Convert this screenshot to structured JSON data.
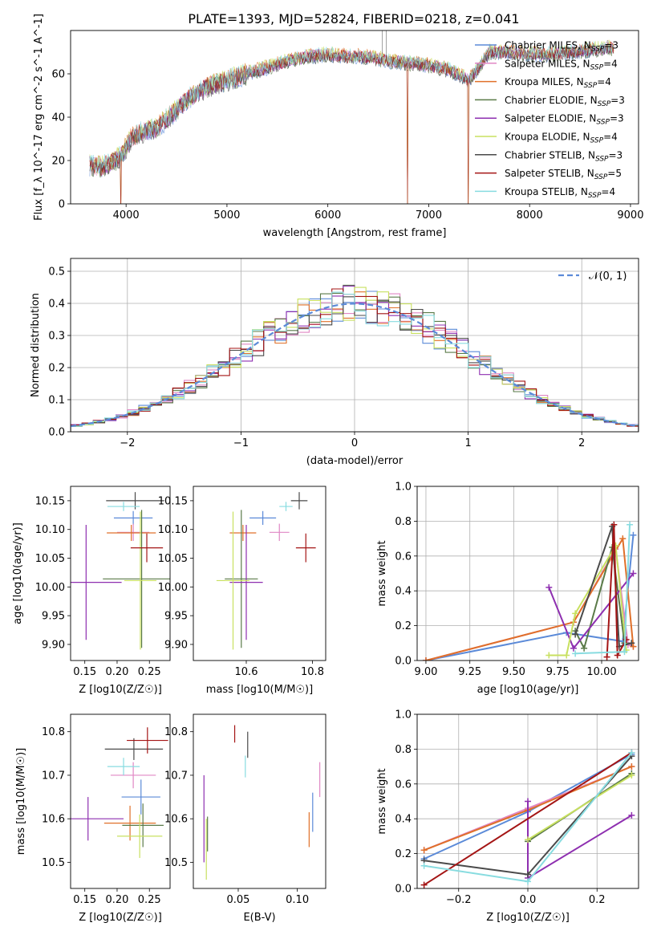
{
  "title": "PLATE=1393, MJD=52824, FIBERID=0218, z=0.041",
  "colors": {
    "Chabrier MILES": "#5b8ad8",
    "Salpeter MILES": "#e087c4",
    "Kroupa MILES": "#e0702a",
    "Chabrier ELODIE": "#5a7a48",
    "Salpeter ELODIE": "#8e2fb0",
    "Kroupa ELODIE": "#c8e060",
    "Chabrier STELIB": "#4a4a4a",
    "Salpeter STELIB": "#a41515",
    "Kroupa STELIB": "#88dce0"
  },
  "chart_data": [
    {
      "id": "spectrum",
      "type": "line",
      "title": "PLATE=1393, MJD=52824, FIBERID=0218, z=0.041",
      "xlabel": "wavelength [Angstrom, rest frame]",
      "ylabel": "Flux [f_λ 10^-17 erg cm^-2 s^-1 A^-1]",
      "xlim": [
        3450,
        9080
      ],
      "ylim": [
        0,
        80
      ],
      "xticks": [
        4000,
        5000,
        6000,
        7000,
        8000,
        9000
      ],
      "yticks": [
        0,
        20,
        40,
        60
      ],
      "legend_position": "top-right",
      "legend": [
        {
          "label": "Chabrier MILES, N",
          "sub": "SSP",
          "suffix": "=3"
        },
        {
          "label": "Salpeter MILES, N",
          "sub": "SSP",
          "suffix": "=4"
        },
        {
          "label": "Kroupa MILES, N",
          "sub": "SSP",
          "suffix": "=4"
        },
        {
          "label": "Chabrier ELODIE, N",
          "sub": "SSP",
          "suffix": "=3"
        },
        {
          "label": "Salpeter ELODIE, N",
          "sub": "SSP",
          "suffix": "=3"
        },
        {
          "label": "Kroupa ELODIE, N",
          "sub": "SSP",
          "suffix": "=4"
        },
        {
          "label": "Chabrier STELIB, N",
          "sub": "SSP",
          "suffix": "=3"
        },
        {
          "label": "Salpeter STELIB, N",
          "sub": "SSP",
          "suffix": "=5"
        },
        {
          "label": "Kroupa STELIB, N",
          "sub": "SSP",
          "suffix": "=4"
        }
      ],
      "continuum": {
        "x": [
          3650,
          3750,
          3850,
          3950,
          4050,
          4150,
          4300,
          4450,
          4600,
          4800,
          5000,
          5200,
          5400,
          5600,
          5800,
          6000,
          6200,
          6400,
          6600,
          6800,
          7000,
          7200,
          7400,
          7600,
          7800,
          8000,
          8200,
          8400,
          8600,
          8800
        ],
        "y": [
          18,
          17,
          19,
          22,
          30,
          33,
          35,
          41,
          48,
          54,
          57,
          60,
          63,
          66,
          68,
          69,
          68,
          68,
          66,
          65,
          64,
          62,
          57,
          70,
          70,
          69,
          69,
          70,
          71,
          72
        ]
      },
      "dropouts": [
        3950,
        6790,
        7390
      ]
    },
    {
      "id": "residuals",
      "type": "histogram",
      "xlabel": "(data-model)/error",
      "ylabel": "Normed distribution",
      "xlim": [
        -2.5,
        2.5
      ],
      "ylim": [
        0,
        0.54
      ],
      "xticks": [
        -2,
        -1,
        0,
        1,
        2
      ],
      "yticks": [
        0.0,
        0.1,
        0.2,
        0.3,
        0.4,
        0.5
      ],
      "bins": 50,
      "reference_curve": "𝒩(0, 1)",
      "legend_position": "top-right"
    },
    {
      "id": "age_vs_Z",
      "type": "scatter",
      "xlabel": "Z [log10(Z/Z☉)]",
      "ylabel": "age  [log10(age/yr)]",
      "xlim": [
        0.128,
        0.282
      ],
      "ylim": [
        9.872,
        10.175
      ],
      "xticks": [
        0.15,
        0.2,
        0.25
      ],
      "yticks": [
        9.9,
        9.95,
        10.0,
        10.05,
        10.1,
        10.15
      ],
      "points": [
        {
          "model": "Chabrier MILES",
          "x": 0.225,
          "y": 10.12,
          "xerr": 0.03,
          "yerr": 0.012
        },
        {
          "model": "Salpeter MILES",
          "x": 0.225,
          "y": 10.095,
          "xerr": 0.025,
          "yerr": 0.015
        },
        {
          "model": "Kroupa MILES",
          "x": 0.222,
          "y": 10.094,
          "xerr": 0.038,
          "yerr": 0.014
        },
        {
          "model": "Chabrier ELODIE",
          "x": 0.238,
          "y": 10.014,
          "xerr": 0.06,
          "yerr": 0.12
        },
        {
          "model": "Salpeter ELODIE",
          "x": 0.152,
          "y": 10.008,
          "xerr": 0.055,
          "yerr": 0.1
        },
        {
          "model": "Kroupa ELODIE",
          "x": 0.236,
          "y": 10.011,
          "xerr": 0.025,
          "yerr": 0.12
        },
        {
          "model": "Chabrier STELIB",
          "x": 0.228,
          "y": 10.15,
          "xerr": 0.045,
          "yerr": 0.015
        },
        {
          "model": "Salpeter STELIB",
          "x": 0.246,
          "y": 10.068,
          "xerr": 0.025,
          "yerr": 0.025
        },
        {
          "model": "Kroupa STELIB",
          "x": 0.21,
          "y": 10.14,
          "xerr": 0.025,
          "yerr": 0.008
        }
      ]
    },
    {
      "id": "age_vs_mass",
      "type": "scatter",
      "xlabel": "mass [log10(M/M☉)]",
      "ylabel": "",
      "xlim": [
        10.44,
        10.84
      ],
      "ylim": [
        9.872,
        10.175
      ],
      "xticks": [
        10.6,
        10.8
      ],
      "yticks": [
        9.9,
        9.95,
        10.0,
        10.05,
        10.1,
        10.15
      ],
      "points": [
        {
          "model": "Chabrier MILES",
          "x": 10.65,
          "y": 10.12,
          "xerr": 0.04,
          "yerr": 0.012
        },
        {
          "model": "Salpeter MILES",
          "x": 10.7,
          "y": 10.095,
          "xerr": 0.03,
          "yerr": 0.015
        },
        {
          "model": "Kroupa MILES",
          "x": 10.59,
          "y": 10.094,
          "xerr": 0.04,
          "yerr": 0.014
        },
        {
          "model": "Chabrier ELODIE",
          "x": 10.585,
          "y": 10.014,
          "xerr": 0.05,
          "yerr": 0.12
        },
        {
          "model": "Salpeter ELODIE",
          "x": 10.6,
          "y": 10.008,
          "xerr": 0.05,
          "yerr": 0.1
        },
        {
          "model": "Kroupa ELODIE",
          "x": 10.56,
          "y": 10.011,
          "xerr": 0.05,
          "yerr": 0.12
        },
        {
          "model": "Chabrier STELIB",
          "x": 10.76,
          "y": 10.15,
          "xerr": 0.025,
          "yerr": 0.015
        },
        {
          "model": "Salpeter STELIB",
          "x": 10.78,
          "y": 10.068,
          "xerr": 0.03,
          "yerr": 0.025
        },
        {
          "model": "Kroupa STELIB",
          "x": 10.72,
          "y": 10.14,
          "xerr": 0.02,
          "yerr": 0.008
        }
      ]
    },
    {
      "id": "weight_vs_age",
      "type": "line",
      "xlabel": "age  [log10(age/yr)]",
      "ylabel": "mass weight",
      "xlim": [
        8.95,
        10.21
      ],
      "ylim": [
        0,
        1.0
      ],
      "xticks": [
        9.0,
        9.25,
        9.5,
        9.75,
        10.0
      ],
      "yticks": [
        0.0,
        0.2,
        0.4,
        0.6,
        0.8,
        1.0
      ],
      "series": [
        {
          "model": "Chabrier MILES",
          "x": [
            9.0,
            9.8,
            10.12,
            10.18
          ],
          "y": [
            0.0,
            0.16,
            0.11,
            0.72
          ]
        },
        {
          "model": "Salpeter MILES",
          "x": [
            9.0,
            9.84,
            10.08,
            10.15,
            10.18
          ],
          "y": [
            0.0,
            0.22,
            0.64,
            0.09,
            0.08
          ]
        },
        {
          "model": "Kroupa MILES",
          "x": [
            9.0,
            9.84,
            10.12,
            10.18
          ],
          "y": [
            0.0,
            0.22,
            0.7,
            0.08
          ]
        },
        {
          "model": "Chabrier ELODIE",
          "x": [
            9.85,
            9.9,
            10.06,
            10.13
          ],
          "y": [
            0.17,
            0.07,
            0.65,
            0.1
          ]
        },
        {
          "model": "Salpeter ELODIE",
          "x": [
            9.7,
            9.84,
            10.18
          ],
          "y": [
            0.42,
            0.07,
            0.5
          ]
        },
        {
          "model": "Kroupa ELODIE",
          "x": [
            9.7,
            9.8,
            9.85,
            10.08,
            10.14
          ],
          "y": [
            0.03,
            0.03,
            0.27,
            0.66,
            0.06
          ]
        },
        {
          "model": "Chabrier STELIB",
          "x": [
            9.85,
            10.06,
            10.1,
            10.17
          ],
          "y": [
            0.15,
            0.77,
            0.08,
            0.1
          ]
        },
        {
          "model": "Salpeter STELIB",
          "x": [
            10.03,
            10.07,
            10.09,
            10.14
          ],
          "y": [
            0.02,
            0.78,
            0.03,
            0.12
          ]
        },
        {
          "model": "Kroupa STELIB",
          "x": [
            9.85,
            10.13,
            10.16
          ],
          "y": [
            0.04,
            0.05,
            0.78
          ]
        }
      ]
    },
    {
      "id": "mass_vs_Z",
      "type": "scatter",
      "xlabel": "Z [log10(Z/Z☉)]",
      "ylabel": "mass [log10(M/M☉)]",
      "xlim": [
        0.128,
        0.282
      ],
      "ylim": [
        10.44,
        10.84
      ],
      "xticks": [
        0.15,
        0.2,
        0.25
      ],
      "yticks": [
        10.5,
        10.6,
        10.7,
        10.8
      ],
      "points": [
        {
          "model": "Chabrier MILES",
          "x": 0.237,
          "y": 10.65,
          "xerr": 0.03,
          "yerr": 0.04
        },
        {
          "model": "Salpeter MILES",
          "x": 0.225,
          "y": 10.7,
          "xerr": 0.035,
          "yerr": 0.03
        },
        {
          "model": "Kroupa MILES",
          "x": 0.22,
          "y": 10.59,
          "xerr": 0.04,
          "yerr": 0.04
        },
        {
          "model": "Chabrier ELODIE",
          "x": 0.24,
          "y": 10.585,
          "xerr": 0.032,
          "yerr": 0.05
        },
        {
          "model": "Salpeter ELODIE",
          "x": 0.155,
          "y": 10.6,
          "xerr": 0.055,
          "yerr": 0.05
        },
        {
          "model": "Kroupa ELODIE",
          "x": 0.235,
          "y": 10.56,
          "xerr": 0.035,
          "yerr": 0.05
        },
        {
          "model": "Chabrier STELIB",
          "x": 0.226,
          "y": 10.76,
          "xerr": 0.045,
          "yerr": 0.025
        },
        {
          "model": "Salpeter STELIB",
          "x": 0.247,
          "y": 10.78,
          "xerr": 0.032,
          "yerr": 0.03
        },
        {
          "model": "Kroupa STELIB",
          "x": 0.21,
          "y": 10.72,
          "xerr": 0.025,
          "yerr": 0.02
        }
      ]
    },
    {
      "id": "mass_vs_EBV",
      "type": "scatter",
      "xlabel": "E(B-V)",
      "ylabel": "",
      "xlim": [
        0.012,
        0.124
      ],
      "ylim": [
        10.44,
        10.84
      ],
      "xticks": [
        0.05,
        0.1
      ],
      "yticks": [
        10.5,
        10.6,
        10.7,
        10.8
      ],
      "points": [
        {
          "model": "Chabrier MILES",
          "x": 0.113,
          "y": 10.615,
          "yerr": 0.045
        },
        {
          "model": "Salpeter MILES",
          "x": 0.119,
          "y": 10.69,
          "yerr": 0.04
        },
        {
          "model": "Kroupa MILES",
          "x": 0.11,
          "y": 10.575,
          "yerr": 0.04
        },
        {
          "model": "Chabrier ELODIE",
          "x": 0.024,
          "y": 10.565,
          "yerr": 0.04
        },
        {
          "model": "Salpeter ELODIE",
          "x": 0.021,
          "y": 10.6,
          "yerr": 0.1
        },
        {
          "model": "Kroupa ELODIE",
          "x": 0.023,
          "y": 10.53,
          "yerr": 0.07
        },
        {
          "model": "Chabrier STELIB",
          "x": 0.058,
          "y": 10.77,
          "yerr": 0.03
        },
        {
          "model": "Salpeter STELIB",
          "x": 0.047,
          "y": 10.795,
          "yerr": 0.02
        },
        {
          "model": "Kroupa STELIB",
          "x": 0.056,
          "y": 10.72,
          "yerr": 0.025
        }
      ]
    },
    {
      "id": "weight_vs_Z",
      "type": "line",
      "xlabel": "Z [log10(Z/Z☉)]",
      "ylabel": "mass weight",
      "xlim": [
        -0.32,
        0.32
      ],
      "ylim": [
        0,
        1.0
      ],
      "xticks": [
        -0.2,
        0.0,
        0.2
      ],
      "yticks": [
        0.0,
        0.2,
        0.4,
        0.6,
        0.8,
        1.0
      ],
      "series": [
        {
          "model": "Chabrier MILES",
          "x": [
            -0.3,
            0.0,
            0.3
          ],
          "y": [
            0.17,
            0.44,
            0.77
          ]
        },
        {
          "model": "Salpeter MILES",
          "x": [
            -0.3,
            0.0,
            0.3
          ],
          "y": [
            0.22,
            0.46,
            0.7
          ]
        },
        {
          "model": "Kroupa MILES",
          "x": [
            -0.3,
            0.0,
            0.3
          ],
          "y": [
            0.22,
            0.45,
            0.7
          ]
        },
        {
          "model": "Chabrier ELODIE",
          "x": [
            0.0,
            0.3
          ],
          "y": [
            0.27,
            0.66
          ]
        },
        {
          "model": "Salpeter ELODIE",
          "x": [
            0.0,
            0.0,
            0.3
          ],
          "y": [
            0.5,
            0.06,
            0.42
          ]
        },
        {
          "model": "Kroupa ELODIE",
          "x": [
            0.0,
            0.3
          ],
          "y": [
            0.28,
            0.65
          ]
        },
        {
          "model": "Chabrier STELIB",
          "x": [
            -0.3,
            0.0,
            0.3
          ],
          "y": [
            0.16,
            0.08,
            0.76
          ]
        },
        {
          "model": "Salpeter STELIB",
          "x": [
            -0.3,
            0.3
          ],
          "y": [
            0.02,
            0.78
          ]
        },
        {
          "model": "Kroupa STELIB",
          "x": [
            -0.3,
            0.0,
            0.3
          ],
          "y": [
            0.13,
            0.04,
            0.78
          ]
        }
      ]
    }
  ]
}
